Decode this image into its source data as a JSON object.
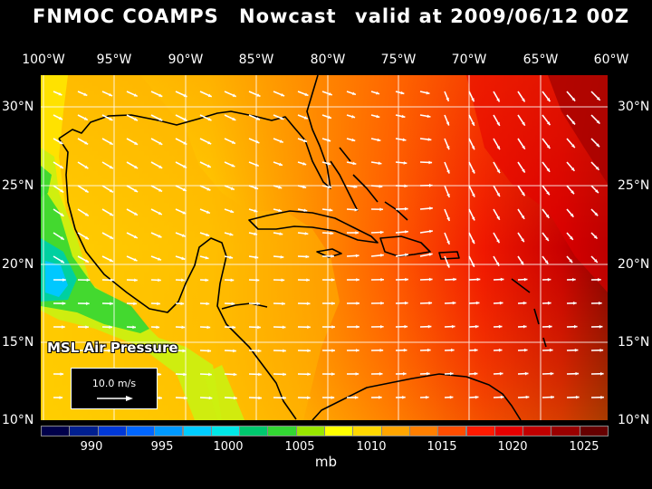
{
  "header": {
    "source": "FNMOC COAMPS",
    "mode": "Nowcast",
    "valid": "valid at 2009/06/12 00Z"
  },
  "axes": {
    "lon_labels": [
      "100°W",
      "95°W",
      "90°W",
      "85°W",
      "80°W",
      "75°W",
      "70°W",
      "65°W",
      "60°W"
    ],
    "lat_labels": [
      "30°N",
      "25°N",
      "20°N",
      "15°N",
      "10°N"
    ]
  },
  "map": {
    "field": "MSL Air Pressure",
    "extent": {
      "lon_min": -100,
      "lon_max": -60,
      "lat_min": 10,
      "lat_max": 32
    },
    "scale_vector_label": "10.0 m/s",
    "background": "#000000",
    "vector_color": "#ffffff",
    "coastline_color": "#000000",
    "grid_color": "#ffffff"
  },
  "colorbar": {
    "unit": "mb",
    "tick_labels": [
      "990",
      "995",
      "1000",
      "1005",
      "1010",
      "1015",
      "1020",
      "1025"
    ],
    "colors": [
      "#00004a",
      "#001f8f",
      "#0038d6",
      "#0066ff",
      "#0099ff",
      "#00ccff",
      "#00e6e6",
      "#00c86e",
      "#33d633",
      "#99e600",
      "#ffff00",
      "#ffd700",
      "#ffa500",
      "#ff7f00",
      "#ff4d00",
      "#ff1a00",
      "#e60000",
      "#c00000",
      "#990000",
      "#660000"
    ]
  }
}
